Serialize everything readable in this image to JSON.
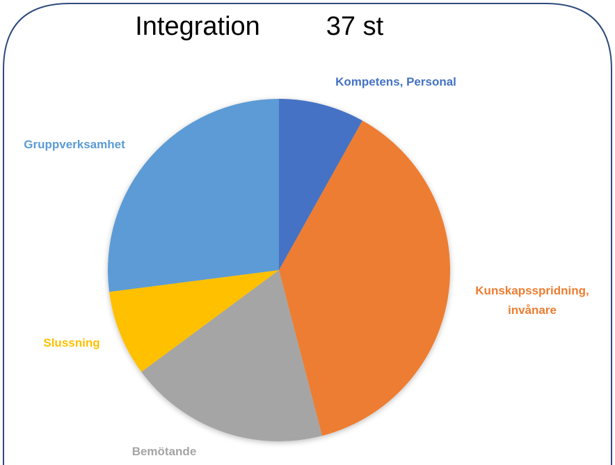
{
  "chart_data": {
    "type": "pie",
    "title": "Integration",
    "subtitle": "37 st",
    "categories": [
      "Kompetens, Personal",
      "Kunskapsspridning, invånare",
      "Bemötande",
      "Slussning",
      "Gruppverksamhet"
    ],
    "values": [
      3,
      14,
      7,
      3,
      10
    ],
    "colors": [
      "#4472c4",
      "#ed7d31",
      "#a5a5a5",
      "#ffc000",
      "#5b9bd5"
    ]
  }
}
